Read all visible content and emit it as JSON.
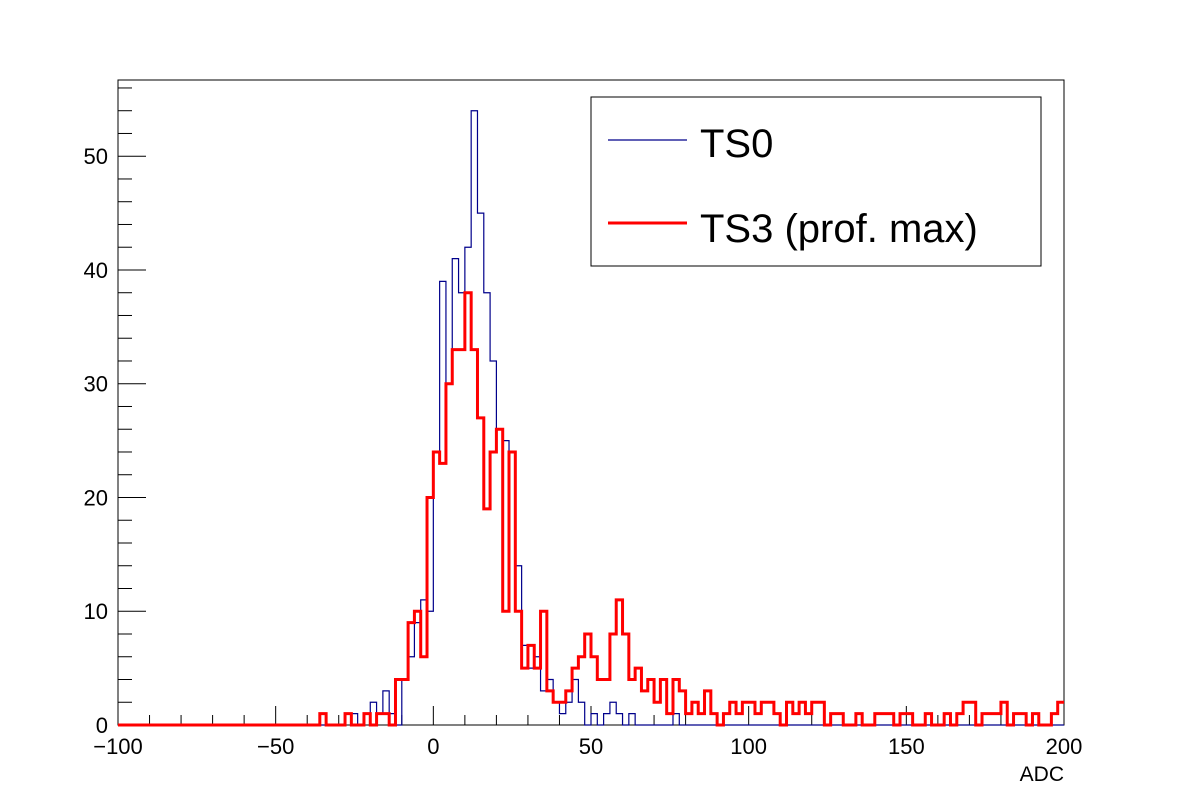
{
  "chart_data": {
    "type": "line",
    "step": true,
    "title": "",
    "xlabel": "ADC",
    "ylabel": "",
    "xlim": [
      -100,
      200
    ],
    "ylim": [
      0,
      56.7
    ],
    "bin_width": 2,
    "x_ticks": [
      -100,
      -50,
      0,
      50,
      100,
      150,
      200
    ],
    "x_tick_labels": [
      "−100",
      "−50",
      "0",
      "50",
      "100",
      "150",
      "200"
    ],
    "y_ticks": [
      0,
      10,
      20,
      30,
      40,
      50
    ],
    "y_tick_labels": [
      "0",
      "10",
      "20",
      "30",
      "40",
      "50"
    ],
    "legend_position": "top-right",
    "series": [
      {
        "name": "TS0",
        "color": "#00008b",
        "line_width": 1.2,
        "bins": [
          [
            -28,
            -26,
            1
          ],
          [
            -26,
            -24,
            1
          ],
          [
            -22,
            -20,
            1
          ],
          [
            -20,
            -18,
            2
          ],
          [
            -18,
            -16,
            1
          ],
          [
            -16,
            -14,
            3
          ],
          [
            -14,
            -12,
            1
          ],
          [
            -10,
            -8,
            4
          ],
          [
            -8,
            -6,
            6
          ],
          [
            -6,
            -4,
            9
          ],
          [
            -4,
            -2,
            11
          ],
          [
            -2,
            0,
            10
          ],
          [
            0,
            2,
            24
          ],
          [
            2,
            4,
            39
          ],
          [
            4,
            6,
            30
          ],
          [
            6,
            8,
            41
          ],
          [
            8,
            10,
            38
          ],
          [
            10,
            12,
            42
          ],
          [
            12,
            14,
            54
          ],
          [
            14,
            16,
            45
          ],
          [
            16,
            18,
            38
          ],
          [
            18,
            20,
            32
          ],
          [
            20,
            22,
            26
          ],
          [
            22,
            24,
            25
          ],
          [
            24,
            26,
            24
          ],
          [
            26,
            28,
            14
          ],
          [
            28,
            30,
            7
          ],
          [
            30,
            32,
            5
          ],
          [
            32,
            34,
            6
          ],
          [
            34,
            36,
            3
          ],
          [
            36,
            38,
            4
          ],
          [
            38,
            40,
            2
          ],
          [
            40,
            42,
            1
          ],
          [
            42,
            44,
            2
          ],
          [
            44,
            46,
            4
          ],
          [
            46,
            48,
            2
          ],
          [
            50,
            52,
            1
          ],
          [
            54,
            56,
            1
          ],
          [
            56,
            58,
            2
          ],
          [
            58,
            60,
            1
          ],
          [
            62,
            64,
            1
          ],
          [
            76,
            78,
            1
          ]
        ]
      },
      {
        "name": "TS3 (prof. max)",
        "color": "#ff0000",
        "line_width": 3,
        "bins": [
          [
            -36,
            -34,
            1
          ],
          [
            -28,
            -26,
            1
          ],
          [
            -22,
            -20,
            1
          ],
          [
            -18,
            -16,
            1
          ],
          [
            -16,
            -14,
            1
          ],
          [
            -12,
            -10,
            4
          ],
          [
            -10,
            -8,
            4
          ],
          [
            -8,
            -6,
            9
          ],
          [
            -6,
            -4,
            10
          ],
          [
            -4,
            -2,
            6
          ],
          [
            -2,
            0,
            20
          ],
          [
            0,
            2,
            24
          ],
          [
            2,
            4,
            23
          ],
          [
            4,
            6,
            30
          ],
          [
            6,
            8,
            33
          ],
          [
            8,
            10,
            33
          ],
          [
            10,
            12,
            38
          ],
          [
            12,
            14,
            33
          ],
          [
            14,
            16,
            27
          ],
          [
            16,
            18,
            19
          ],
          [
            18,
            20,
            24
          ],
          [
            20,
            22,
            26
          ],
          [
            22,
            24,
            10
          ],
          [
            24,
            26,
            24
          ],
          [
            26,
            28,
            10
          ],
          [
            28,
            30,
            5
          ],
          [
            30,
            32,
            7
          ],
          [
            32,
            34,
            5
          ],
          [
            34,
            36,
            10
          ],
          [
            36,
            38,
            3
          ],
          [
            38,
            40,
            2
          ],
          [
            40,
            42,
            2
          ],
          [
            42,
            44,
            3
          ],
          [
            44,
            46,
            5
          ],
          [
            46,
            48,
            6
          ],
          [
            48,
            50,
            8
          ],
          [
            50,
            52,
            6
          ],
          [
            52,
            54,
            4
          ],
          [
            54,
            56,
            4
          ],
          [
            56,
            58,
            8
          ],
          [
            58,
            60,
            11
          ],
          [
            60,
            62,
            8
          ],
          [
            62,
            64,
            4
          ],
          [
            64,
            66,
            5
          ],
          [
            66,
            68,
            3
          ],
          [
            68,
            70,
            4
          ],
          [
            70,
            72,
            2
          ],
          [
            72,
            74,
            4
          ],
          [
            74,
            76,
            1
          ],
          [
            76,
            78,
            4
          ],
          [
            78,
            80,
            3
          ],
          [
            80,
            82,
            1
          ],
          [
            82,
            84,
            2
          ],
          [
            84,
            86,
            1
          ],
          [
            86,
            88,
            3
          ],
          [
            88,
            90,
            1
          ],
          [
            92,
            94,
            1
          ],
          [
            94,
            96,
            2
          ],
          [
            96,
            98,
            1
          ],
          [
            98,
            100,
            2
          ],
          [
            100,
            102,
            2
          ],
          [
            102,
            104,
            1
          ],
          [
            104,
            106,
            2
          ],
          [
            106,
            108,
            2
          ],
          [
            108,
            110,
            1
          ],
          [
            112,
            114,
            2
          ],
          [
            114,
            116,
            1
          ],
          [
            116,
            118,
            2
          ],
          [
            118,
            120,
            1
          ],
          [
            120,
            122,
            2
          ],
          [
            122,
            124,
            2
          ],
          [
            126,
            128,
            1
          ],
          [
            128,
            130,
            1
          ],
          [
            134,
            136,
            1
          ],
          [
            140,
            142,
            1
          ],
          [
            142,
            144,
            1
          ],
          [
            144,
            146,
            1
          ],
          [
            148,
            150,
            1
          ],
          [
            150,
            152,
            1
          ],
          [
            156,
            158,
            1
          ],
          [
            162,
            164,
            1
          ],
          [
            166,
            168,
            1
          ],
          [
            168,
            170,
            2
          ],
          [
            170,
            172,
            2
          ],
          [
            174,
            176,
            1
          ],
          [
            176,
            178,
            1
          ],
          [
            178,
            180,
            1
          ],
          [
            180,
            182,
            2
          ],
          [
            184,
            186,
            1
          ],
          [
            186,
            188,
            1
          ],
          [
            190,
            192,
            1
          ],
          [
            196,
            198,
            1
          ],
          [
            198,
            200,
            2
          ]
        ]
      }
    ]
  }
}
